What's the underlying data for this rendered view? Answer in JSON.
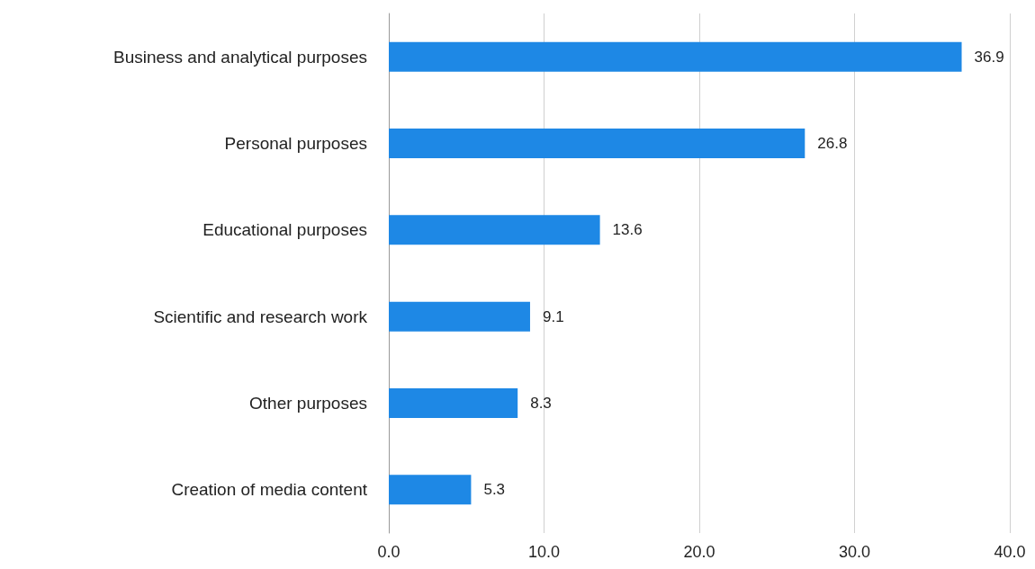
{
  "chart_data": {
    "type": "bar",
    "orientation": "horizontal",
    "categories": [
      "Business and analytical purposes",
      "Personal purposes",
      "Educational purposes",
      "Scientific and research work",
      "Other purposes",
      "Creation of media content"
    ],
    "values": [
      36.9,
      26.8,
      13.6,
      9.1,
      8.3,
      5.3
    ],
    "color": "#1e88e5",
    "xlim": [
      0,
      40
    ],
    "xticks": [
      {
        "value": 0,
        "label": "0.0"
      },
      {
        "value": 10,
        "label": "10.0"
      },
      {
        "value": 20,
        "label": "20.0"
      },
      {
        "value": 30,
        "label": "30.0"
      },
      {
        "value": 40,
        "label": "40.0"
      }
    ],
    "grid": "x",
    "data_labels": true
  }
}
